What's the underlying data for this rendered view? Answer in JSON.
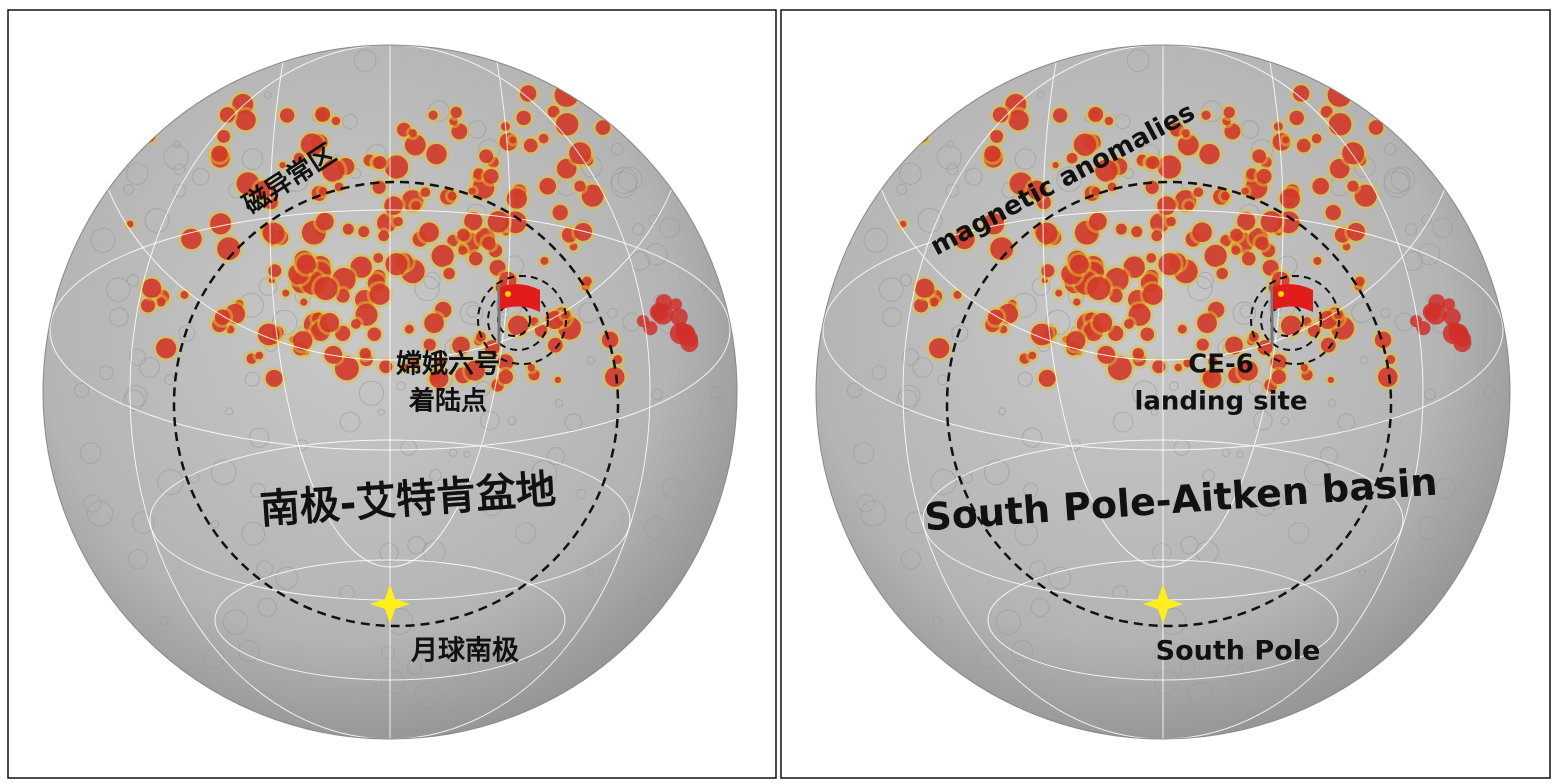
{
  "panels": [
    {
      "anomalies": "磁异常区",
      "landing_site": [
        "嫦娥六号",
        "着陆点"
      ],
      "basin": "南极-艾特肯盆地",
      "south_pole": "月球南极"
    },
    {
      "anomalies": "magnetic anomalies",
      "landing_site": [
        "CE-6",
        "landing site"
      ],
      "basin": "South Pole-Aitken basin",
      "south_pole": "South Pole"
    }
  ]
}
